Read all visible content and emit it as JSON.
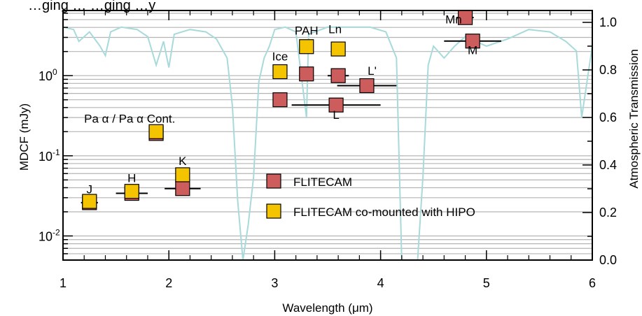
{
  "chart_data": {
    "type": "scatter",
    "title": "…ging … …ging …y",
    "xlabel": "Wavelength (μm)",
    "ylabel_left": "MDCF (mJy)",
    "ylabel_right": "Atmospheric Transmission",
    "xlim": [
      1,
      6
    ],
    "ylim_left": [
      0.005,
      6.5
    ],
    "yscale_left": "log",
    "ylim_right": [
      0.0,
      1.05
    ],
    "x_ticks": [
      "1",
      "2",
      "3",
      "4",
      "5",
      "6"
    ],
    "y_left_ticks": [
      {
        "value": 0.01,
        "base": "10",
        "exp": "-2"
      },
      {
        "value": 0.1,
        "base": "10",
        "exp": "-1"
      },
      {
        "value": 1,
        "base": "10",
        "exp": "0"
      }
    ],
    "y_right_ticks": [
      "0.0",
      "0.2",
      "0.4",
      "0.6",
      "0.8",
      "1.0"
    ],
    "grid": true,
    "colors": {
      "flitecam": "#cd5c5c",
      "hipo": "#f5c400",
      "transmission": "#a8dadc",
      "grid": "#b4b4b4"
    },
    "series": [
      {
        "name": "FLITECAM",
        "key": "flitecam",
        "points": [
          {
            "x": 1.25,
            "y": 0.026,
            "xerr": 0.08
          },
          {
            "x": 1.65,
            "y": 0.034,
            "xerr": 0.15
          },
          {
            "x": 2.13,
            "y": 0.039,
            "xerr": 0.17
          },
          {
            "x": 1.88,
            "y": 0.19,
            "xerr": 0.0
          },
          {
            "x": 3.05,
            "y": 0.5,
            "xerr": 0.0
          },
          {
            "x": 3.3,
            "y": 1.05,
            "xerr": 0.0
          },
          {
            "x": 3.6,
            "y": 1.0,
            "xerr": 0.1
          },
          {
            "x": 3.58,
            "y": 0.43,
            "xerr": 0.42
          },
          {
            "x": 3.87,
            "y": 0.75,
            "xerr": 0.28
          },
          {
            "x": 4.8,
            "y": 5.3,
            "xerr": 0.08
          },
          {
            "x": 4.87,
            "y": 2.7,
            "xerr": 0.27
          }
        ]
      },
      {
        "name": "FLITECAM co-mounted with HIPO",
        "key": "hipo",
        "points": [
          {
            "x": 1.25,
            "y": 0.027,
            "xerr": 0.0
          },
          {
            "x": 1.65,
            "y": 0.036,
            "xerr": 0.0
          },
          {
            "x": 2.13,
            "y": 0.058,
            "xerr": 0.0
          },
          {
            "x": 1.88,
            "y": 0.2,
            "xerr": 0.0
          },
          {
            "x": 3.05,
            "y": 1.12,
            "xerr": 0.0
          },
          {
            "x": 3.3,
            "y": 2.3,
            "xerr": 0.0
          },
          {
            "x": 3.6,
            "y": 2.15,
            "xerr": 0.0
          }
        ]
      }
    ],
    "annotations": [
      {
        "text": "J",
        "x": 1.25,
        "y": 0.034
      },
      {
        "text": "H",
        "x": 1.65,
        "y": 0.047
      },
      {
        "text": "K",
        "x": 2.13,
        "y": 0.077
      },
      {
        "text": "Pa α / Pa α Cont.",
        "x": 1.63,
        "y": 0.26
      },
      {
        "text": "Ice",
        "x": 3.05,
        "y": 1.55
      },
      {
        "text": "PAH",
        "x": 3.3,
        "y": 3.25
      },
      {
        "text": "Ln",
        "x": 3.57,
        "y": 3.4
      },
      {
        "text": "L'",
        "x": 3.92,
        "y": 1.02
      },
      {
        "text": "L",
        "x": 3.58,
        "y": 0.29
      },
      {
        "text": "Mn",
        "x": 4.69,
        "y": 4.5
      },
      {
        "text": "M",
        "x": 4.87,
        "y": 1.85
      }
    ],
    "legend": {
      "placement": "center-right",
      "items": [
        {
          "label": "FLITECAM",
          "color_key": "flitecam"
        },
        {
          "label": "FLITECAM co-mounted with HIPO",
          "color_key": "hipo"
        }
      ]
    },
    "transmission": [
      [
        1.0,
        0.98
      ],
      [
        1.1,
        0.97
      ],
      [
        1.15,
        0.92
      ],
      [
        1.25,
        0.96
      ],
      [
        1.35,
        0.9
      ],
      [
        1.4,
        0.86
      ],
      [
        1.45,
        0.96
      ],
      [
        1.55,
        0.98
      ],
      [
        1.7,
        0.97
      ],
      [
        1.8,
        0.94
      ],
      [
        1.88,
        0.82
      ],
      [
        1.95,
        0.92
      ],
      [
        2.0,
        0.81
      ],
      [
        2.05,
        0.95
      ],
      [
        2.2,
        0.97
      ],
      [
        2.35,
        0.96
      ],
      [
        2.45,
        0.93
      ],
      [
        2.55,
        0.85
      ],
      [
        2.6,
        0.65
      ],
      [
        2.65,
        0.25
      ],
      [
        2.7,
        0.0
      ],
      [
        2.75,
        0.15
      ],
      [
        2.8,
        0.35
      ],
      [
        2.85,
        0.75
      ],
      [
        2.9,
        0.85
      ],
      [
        2.95,
        0.9
      ],
      [
        3.0,
        0.97
      ],
      [
        3.1,
        0.98
      ],
      [
        3.2,
        0.96
      ],
      [
        3.3,
        0.6
      ],
      [
        3.32,
        0.95
      ],
      [
        3.5,
        0.98
      ],
      [
        3.7,
        0.98
      ],
      [
        3.9,
        0.98
      ],
      [
        4.05,
        0.96
      ],
      [
        4.15,
        0.85
      ],
      [
        4.2,
        0.0
      ],
      [
        4.3,
        0.0
      ],
      [
        4.35,
        0.0
      ],
      [
        4.4,
        0.35
      ],
      [
        4.45,
        0.82
      ],
      [
        4.5,
        0.9
      ],
      [
        4.6,
        0.85
      ],
      [
        4.7,
        0.9
      ],
      [
        4.8,
        0.94
      ],
      [
        4.9,
        0.92
      ],
      [
        5.0,
        0.9
      ],
      [
        5.2,
        0.93
      ],
      [
        5.4,
        0.97
      ],
      [
        5.6,
        0.96
      ],
      [
        5.75,
        0.92
      ],
      [
        5.85,
        0.88
      ],
      [
        5.9,
        0.6
      ],
      [
        5.95,
        0.75
      ],
      [
        6.0,
        0.9
      ]
    ]
  }
}
